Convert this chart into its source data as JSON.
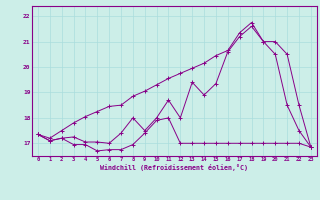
{
  "xlabel": "Windchill (Refroidissement éolien,°C)",
  "background_color": "#cceee8",
  "line_color": "#880088",
  "grid_color": "#aadddd",
  "xlim": [
    -0.5,
    23.5
  ],
  "ylim": [
    16.5,
    22.4
  ],
  "yticks": [
    17,
    18,
    19,
    20,
    21,
    22
  ],
  "xticks": [
    0,
    1,
    2,
    3,
    4,
    5,
    6,
    7,
    8,
    9,
    10,
    11,
    12,
    13,
    14,
    15,
    16,
    17,
    18,
    19,
    20,
    21,
    22,
    23
  ],
  "line1_x": [
    0,
    1,
    2,
    3,
    4,
    5,
    6,
    7,
    8,
    9,
    10,
    11,
    12,
    13,
    14,
    15,
    16,
    17,
    18,
    19,
    20,
    21,
    22,
    23
  ],
  "line1_y": [
    17.35,
    17.1,
    17.2,
    16.95,
    16.95,
    16.7,
    16.75,
    16.75,
    16.95,
    17.4,
    17.9,
    18.0,
    17.0,
    17.0,
    17.0,
    17.0,
    17.0,
    17.0,
    17.0,
    17.0,
    17.0,
    17.0,
    17.0,
    16.85
  ],
  "line2_x": [
    0,
    1,
    2,
    3,
    4,
    5,
    6,
    7,
    8,
    9,
    10,
    11,
    12,
    13,
    14,
    15,
    16,
    17,
    18,
    19,
    20,
    21,
    22,
    23
  ],
  "line2_y": [
    17.35,
    17.1,
    17.2,
    17.25,
    17.05,
    17.05,
    17.0,
    17.4,
    18.0,
    17.5,
    18.0,
    18.7,
    18.0,
    19.4,
    18.9,
    19.35,
    20.6,
    21.2,
    21.6,
    21.0,
    20.5,
    18.5,
    17.5,
    16.85
  ],
  "line3_x": [
    0,
    1,
    2,
    3,
    4,
    5,
    6,
    7,
    8,
    9,
    10,
    11,
    12,
    13,
    14,
    15,
    16,
    17,
    18,
    19,
    20,
    21,
    22,
    23
  ],
  "line3_y": [
    17.35,
    17.2,
    17.5,
    17.8,
    18.05,
    18.25,
    18.45,
    18.5,
    18.85,
    19.05,
    19.3,
    19.55,
    19.75,
    19.95,
    20.15,
    20.45,
    20.65,
    21.35,
    21.75,
    21.0,
    21.0,
    20.5,
    18.5,
    16.85
  ]
}
